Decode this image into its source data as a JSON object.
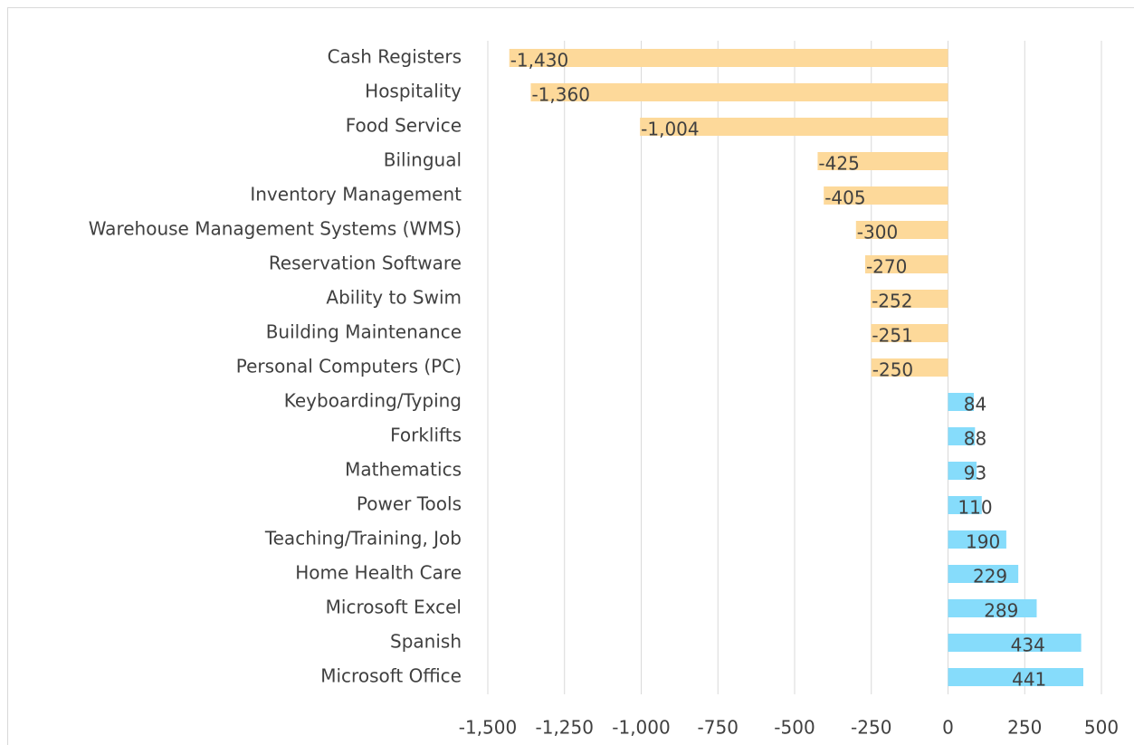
{
  "chart_data": {
    "type": "hbar",
    "categories": [
      "Cash Registers",
      "Hospitality",
      "Food Service",
      "Bilingual",
      "Inventory Management",
      "Warehouse Management Systems (WMS)",
      "Reservation Software",
      "Ability to Swim",
      "Building Maintenance",
      "Personal Computers (PC)",
      "Keyboarding/Typing",
      "Forklifts",
      "Mathematics",
      "Power Tools",
      "Teaching/Training, Job",
      "Home Health Care",
      "Microsoft Excel",
      "Spanish",
      "Microsoft Office"
    ],
    "values": [
      -1430,
      -1360,
      -1004,
      -425,
      -405,
      -300,
      -270,
      -252,
      -251,
      -250,
      84,
      88,
      93,
      110,
      190,
      229,
      289,
      434,
      441
    ],
    "value_labels": [
      "-1,430",
      "-1,360",
      "-1,004",
      "-425",
      "-405",
      "-300",
      "-270",
      "-252",
      "-251",
      "-250",
      "84",
      "88",
      "93",
      "110",
      "190",
      "229",
      "289",
      "434",
      "441"
    ],
    "negative_color": "#fdd99a",
    "positive_color": "#86dcfb",
    "xlim": [
      -1500,
      500
    ],
    "xticks": [
      {
        "value": -1500,
        "label": "-1,500"
      },
      {
        "value": -1250,
        "label": "-1,250"
      },
      {
        "value": -1000,
        "label": "-1,000"
      },
      -750,
      -500,
      -250,
      0,
      250,
      500
    ],
    "grid": true
  }
}
